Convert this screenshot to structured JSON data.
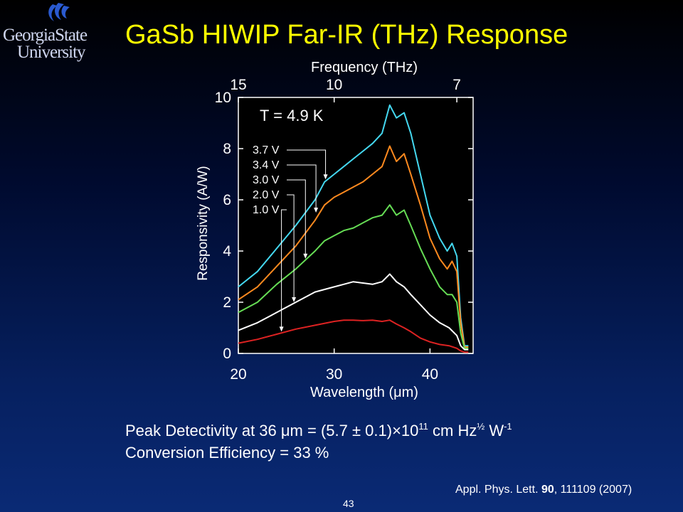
{
  "logo": {
    "line1": "GeorgiaState",
    "line2": "University"
  },
  "slide": {
    "title": "GaSb HIWIP Far-IR (THz) Response",
    "detectivity_prefix": "Peak Detectivity at 36 μm = (5.7 ± 0.1)×10",
    "detectivity_exp": "11",
    "detectivity_unit": " cm Hz",
    "detectivity_half": "½",
    "detectivity_w": " W",
    "detectivity_wexp": "-1",
    "conversion": "Conversion Efficiency = 33 %",
    "reference_prefix": "Appl. Phys. Lett. ",
    "reference_volume": "90",
    "reference_suffix": ", 111109 (2007)",
    "page_number": "43"
  },
  "chart_data": {
    "type": "line",
    "xlabel": "Wavelength (μm)",
    "ylabel": "Responsivity (A/W)",
    "x2label": "Frequency (THz)",
    "xlim": [
      20,
      44.5
    ],
    "ylim": [
      0,
      10
    ],
    "xticks": [
      20,
      30,
      40
    ],
    "yticks": [
      0,
      2,
      4,
      6,
      8,
      10
    ],
    "x2ticks": [
      {
        "label": "15",
        "wavelength": 20.0
      },
      {
        "label": "10",
        "wavelength": 30.0
      },
      {
        "label": "7",
        "wavelength": 42.8
      }
    ],
    "annotation": "T = 4.9 K",
    "series": [
      {
        "name": "3.7 V",
        "color": "#44d8f0",
        "x": [
          20,
          22,
          24,
          26,
          28,
          29,
          30,
          31,
          32,
          33,
          34,
          35,
          35.8,
          36.5,
          37.3,
          38,
          39,
          40,
          41,
          41.8,
          42.3,
          42.8,
          43.2,
          43.6,
          44
        ],
        "y": [
          2.6,
          3.2,
          4.1,
          5.0,
          6.0,
          6.7,
          7.0,
          7.3,
          7.6,
          7.9,
          8.2,
          8.6,
          9.7,
          9.2,
          9.4,
          8.6,
          7.0,
          5.4,
          4.5,
          4.0,
          4.3,
          3.8,
          1.4,
          0.3,
          0.3
        ]
      },
      {
        "name": "3.4 V",
        "color": "#ff8a1f",
        "x": [
          20,
          22,
          24,
          26,
          28,
          29,
          30,
          31,
          32,
          33,
          34,
          35,
          35.8,
          36.5,
          37.3,
          38,
          39,
          40,
          41,
          41.8,
          42.3,
          42.8,
          43.2,
          43.6,
          44
        ],
        "y": [
          2.1,
          2.6,
          3.4,
          4.2,
          5.2,
          5.8,
          6.1,
          6.3,
          6.5,
          6.7,
          7.0,
          7.3,
          8.1,
          7.5,
          7.8,
          7.0,
          5.8,
          4.5,
          3.7,
          3.3,
          3.6,
          3.2,
          1.2,
          0.25,
          0.25
        ]
      },
      {
        "name": "3.0 V",
        "color": "#66dd55",
        "x": [
          20,
          22,
          24,
          26,
          28,
          29,
          30,
          31,
          32,
          33,
          34,
          35,
          35.8,
          36.5,
          37.3,
          38,
          39,
          40,
          41,
          41.8,
          42.3,
          42.8,
          43.2,
          43.6,
          44
        ],
        "y": [
          1.6,
          2.0,
          2.7,
          3.3,
          4.0,
          4.4,
          4.6,
          4.8,
          4.9,
          5.1,
          5.3,
          5.4,
          5.8,
          5.4,
          5.6,
          5.0,
          4.1,
          3.3,
          2.6,
          2.3,
          2.3,
          2.0,
          0.8,
          0.2,
          0.2
        ]
      },
      {
        "name": "2.0 V",
        "color": "#ffffff",
        "x": [
          20,
          22,
          24,
          26,
          28,
          30,
          31,
          32,
          33,
          34,
          35,
          35.8,
          36.5,
          37.3,
          38,
          39,
          40,
          41,
          42,
          42.8,
          43.2,
          43.6,
          44
        ],
        "y": [
          0.9,
          1.2,
          1.6,
          2.0,
          2.4,
          2.6,
          2.7,
          2.8,
          2.75,
          2.7,
          2.8,
          3.1,
          2.8,
          2.6,
          2.3,
          1.9,
          1.5,
          1.2,
          1.0,
          0.7,
          0.3,
          0.15,
          0.15
        ]
      },
      {
        "name": "1.0 V",
        "color": "#dd2222",
        "x": [
          20,
          22,
          24,
          26,
          28,
          30,
          31,
          32,
          33,
          34,
          35,
          35.8,
          36.5,
          37.3,
          38,
          39,
          40,
          41,
          42,
          42.8,
          43.2,
          43.6,
          44
        ],
        "y": [
          0.4,
          0.55,
          0.75,
          0.95,
          1.1,
          1.25,
          1.3,
          1.3,
          1.28,
          1.3,
          1.25,
          1.3,
          1.15,
          1.0,
          0.85,
          0.6,
          0.45,
          0.35,
          0.3,
          0.2,
          0.1,
          0.05,
          0.05
        ]
      }
    ],
    "legend": {
      "placement": "left",
      "labels": [
        "3.7 V",
        "3.4 V",
        "3.0 V",
        "2.0 V",
        "1.0 V"
      ],
      "arrow_targets": [
        {
          "x": 29.1,
          "y": 6.8
        },
        {
          "x": 28.1,
          "y": 5.5
        },
        {
          "x": 27.0,
          "y": 3.7
        },
        {
          "x": 25.8,
          "y": 2.0
        },
        {
          "x": 24.5,
          "y": 0.85
        }
      ]
    }
  }
}
